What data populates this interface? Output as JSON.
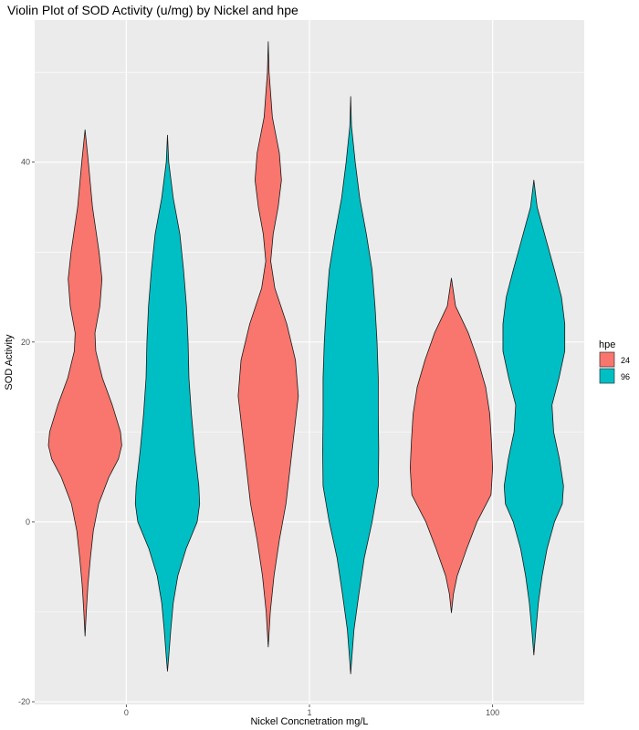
{
  "chart_data": {
    "type": "violin",
    "title": "Violin Plot of SOD Activity (u/mg) by Nickel and hpe",
    "xlabel": "Nickel Concnetration mg/L",
    "ylabel": "SOD Activity",
    "categories": [
      "0",
      "1",
      "100"
    ],
    "ylim": [
      -20.3,
      55.8
    ],
    "y_ticks": [
      -20,
      0,
      20,
      40
    ],
    "y_tick_labels": [
      "-20",
      "0",
      "20",
      "40"
    ],
    "grid": true,
    "legend": {
      "title": "hpe",
      "position": "right",
      "entries": [
        "24",
        "96"
      ]
    },
    "series": [
      {
        "name": "24",
        "color": "#F8766D",
        "violins": [
          {
            "category": "0",
            "min": -12.7,
            "max": 43.6,
            "profile": [
              [
                43.6,
                0.0
              ],
              [
                40,
                0.08
              ],
              [
                35,
                0.18
              ],
              [
                30,
                0.34
              ],
              [
                27,
                0.41
              ],
              [
                24,
                0.36
              ],
              [
                21,
                0.24
              ],
              [
                19,
                0.26
              ],
              [
                16,
                0.42
              ],
              [
                13,
                0.66
              ],
              [
                10,
                0.86
              ],
              [
                8.5,
                0.89
              ],
              [
                7,
                0.81
              ],
              [
                5,
                0.58
              ],
              [
                2,
                0.33
              ],
              [
                -1,
                0.2
              ],
              [
                -4,
                0.13
              ],
              [
                -7,
                0.07
              ],
              [
                -10,
                0.03
              ],
              [
                -12.7,
                0.0
              ]
            ]
          },
          {
            "category": "1",
            "min": -13.9,
            "max": 53.4,
            "profile": [
              [
                53.4,
                0.0
              ],
              [
                50,
                0.02
              ],
              [
                45,
                0.1
              ],
              [
                41,
                0.27
              ],
              [
                38,
                0.32
              ],
              [
                35,
                0.24
              ],
              [
                32,
                0.12
              ],
              [
                29,
                0.06
              ],
              [
                26,
                0.16
              ],
              [
                22,
                0.45
              ],
              [
                18,
                0.66
              ],
              [
                14,
                0.73
              ],
              [
                10,
                0.63
              ],
              [
                6,
                0.53
              ],
              [
                2,
                0.43
              ],
              [
                -2,
                0.27
              ],
              [
                -6,
                0.14
              ],
              [
                -10,
                0.05
              ],
              [
                -13.9,
                0.0
              ]
            ]
          },
          {
            "category": "100",
            "min": -10.1,
            "max": 27.1,
            "profile": [
              [
                27.1,
                0.0
              ],
              [
                24,
                0.1
              ],
              [
                21,
                0.41
              ],
              [
                18,
                0.64
              ],
              [
                15,
                0.83
              ],
              [
                12,
                0.93
              ],
              [
                9,
                0.97
              ],
              [
                6,
                1.0
              ],
              [
                3,
                0.96
              ],
              [
                0,
                0.62
              ],
              [
                -3,
                0.37
              ],
              [
                -6,
                0.14
              ],
              [
                -8,
                0.05
              ],
              [
                -10.1,
                0.0
              ]
            ]
          }
        ]
      },
      {
        "name": "96",
        "color": "#00BFC4",
        "violins": [
          {
            "category": "0",
            "min": -16.6,
            "max": 43.0,
            "profile": [
              [
                43.0,
                0.0
              ],
              [
                40,
                0.03
              ],
              [
                36,
                0.14
              ],
              [
                32,
                0.3
              ],
              [
                28,
                0.39
              ],
              [
                24,
                0.46
              ],
              [
                20,
                0.5
              ],
              [
                16,
                0.52
              ],
              [
                12,
                0.58
              ],
              [
                8,
                0.66
              ],
              [
                4,
                0.76
              ],
              [
                2,
                0.78
              ],
              [
                0,
                0.72
              ],
              [
                -3,
                0.45
              ],
              [
                -6,
                0.25
              ],
              [
                -9,
                0.14
              ],
              [
                -12,
                0.08
              ],
              [
                -15,
                0.03
              ],
              [
                -16.6,
                0.0
              ]
            ]
          },
          {
            "category": "1",
            "min": -16.9,
            "max": 47.3,
            "profile": [
              [
                47.3,
                0.0
              ],
              [
                44,
                0.02
              ],
              [
                40,
                0.11
              ],
              [
                36,
                0.22
              ],
              [
                32,
                0.38
              ],
              [
                28,
                0.52
              ],
              [
                24,
                0.59
              ],
              [
                20,
                0.64
              ],
              [
                16,
                0.67
              ],
              [
                12,
                0.67
              ],
              [
                8,
                0.68
              ],
              [
                4,
                0.67
              ],
              [
                0,
                0.52
              ],
              [
                -4,
                0.33
              ],
              [
                -8,
                0.2
              ],
              [
                -12,
                0.08
              ],
              [
                -15,
                0.03
              ],
              [
                -16.9,
                0.0
              ]
            ]
          },
          {
            "category": "100",
            "min": -14.8,
            "max": 38.0,
            "profile": [
              [
                38.0,
                0.0
              ],
              [
                35,
                0.08
              ],
              [
                31,
                0.32
              ],
              [
                28,
                0.5
              ],
              [
                25,
                0.67
              ],
              [
                22,
                0.75
              ],
              [
                19,
                0.75
              ],
              [
                16,
                0.61
              ],
              [
                13,
                0.44
              ],
              [
                10,
                0.48
              ],
              [
                7,
                0.62
              ],
              [
                4,
                0.72
              ],
              [
                2,
                0.69
              ],
              [
                0,
                0.5
              ],
              [
                -3,
                0.32
              ],
              [
                -6,
                0.2
              ],
              [
                -9,
                0.11
              ],
              [
                -12,
                0.05
              ],
              [
                -14.8,
                0.0
              ]
            ]
          }
        ]
      }
    ]
  }
}
